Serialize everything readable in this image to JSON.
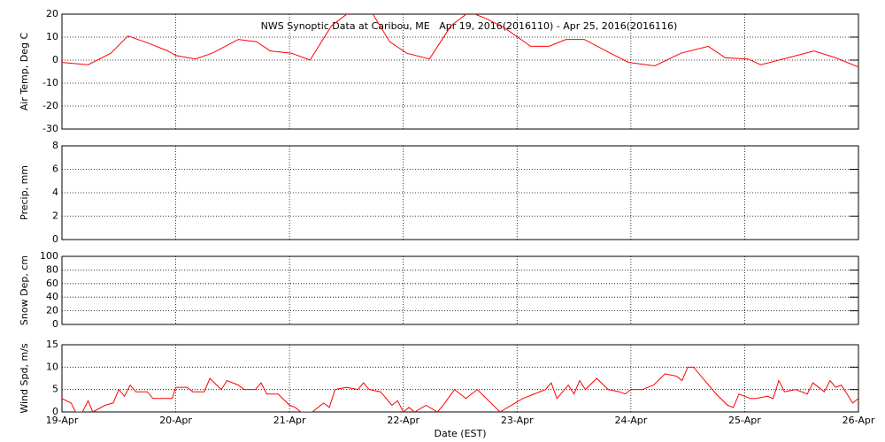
{
  "chart_data": [
    {
      "type": "line",
      "title": "NWS Synoptic Data at Caribou, ME   Apr 19, 2016(2016110) - Apr 25, 2016(2016116)",
      "ylabel": "Air Temp, Deg C",
      "ylim": [
        -30,
        20
      ],
      "yticks": [
        -30,
        -20,
        -10,
        0,
        10,
        20
      ],
      "xlim": [
        0,
        7
      ],
      "xticks": [
        0,
        1,
        2,
        3,
        4,
        5,
        6,
        7
      ],
      "grid": true,
      "x": [
        0,
        0.23,
        0.43,
        0.58,
        0.78,
        0.93,
        1.0,
        1.17,
        1.32,
        1.55,
        1.71,
        1.83,
        2.02,
        2.18,
        2.37,
        2.53,
        2.72,
        2.88,
        3.03,
        3.23,
        3.42,
        3.58,
        3.73,
        3.89,
        4.12,
        4.28,
        4.43,
        4.59,
        4.82,
        4.98,
        5.21,
        5.44,
        5.68,
        5.83,
        6.03,
        6.14,
        6.38,
        6.61,
        6.8,
        7.0
      ],
      "series": [
        {
          "color": "#ff0000",
          "values": [
            -1,
            -2,
            3,
            10.5,
            7,
            4,
            2,
            0.5,
            3,
            9,
            8,
            4,
            3,
            0,
            15,
            21,
            21,
            8,
            3,
            0.5,
            15,
            21,
            18,
            14,
            6,
            6,
            9,
            9,
            3,
            -1,
            -2.5,
            3,
            6,
            1,
            0.5,
            -2,
            1,
            4,
            1,
            -3
          ]
        }
      ]
    },
    {
      "type": "line",
      "ylabel": "Precip, mm",
      "ylim": [
        0,
        8
      ],
      "yticks": [
        0,
        2,
        4,
        6,
        8
      ],
      "xlim": [
        0,
        7
      ],
      "xticks": [
        0,
        1,
        2,
        3,
        4,
        5,
        6,
        7
      ],
      "grid": true
    },
    {
      "type": "line",
      "ylabel": "Snow Dep, cm",
      "ylim": [
        0,
        100
      ],
      "yticks": [
        0,
        20,
        40,
        60,
        80,
        100
      ],
      "xlim": [
        0,
        7
      ],
      "xticks": [
        0,
        1,
        2,
        3,
        4,
        5,
        6,
        7
      ],
      "grid": true
    },
    {
      "type": "line",
      "ylabel": "Wind Spd, m/s",
      "xlabel": "Date (EST)",
      "ylim": [
        0,
        15
      ],
      "yticks": [
        0,
        5,
        10,
        15
      ],
      "xlim": [
        0,
        7
      ],
      "grid": true,
      "xticks": [
        {
          "value": 0,
          "label": "19-Apr"
        },
        {
          "value": 1,
          "label": "20-Apr"
        },
        {
          "value": 2,
          "label": "21-Apr"
        },
        {
          "value": 3,
          "label": "22-Apr"
        },
        {
          "value": 4,
          "label": "23-Apr"
        },
        {
          "value": 5,
          "label": "24-Apr"
        },
        {
          "value": 6,
          "label": "25-Apr"
        },
        {
          "value": 7,
          "label": "26-Apr"
        }
      ],
      "x": [
        0,
        0.08,
        0.12,
        0.18,
        0.23,
        0.27,
        0.38,
        0.45,
        0.5,
        0.55,
        0.6,
        0.65,
        0.75,
        0.8,
        0.9,
        0.97,
        1.0,
        1.1,
        1.15,
        1.25,
        1.3,
        1.4,
        1.45,
        1.55,
        1.6,
        1.7,
        1.75,
        1.8,
        1.9,
        2.0,
        2.05,
        2.1,
        2.2,
        2.3,
        2.35,
        2.4,
        2.5,
        2.6,
        2.65,
        2.7,
        2.8,
        2.9,
        2.95,
        3.0,
        3.05,
        3.1,
        3.2,
        3.3,
        3.35,
        3.45,
        3.55,
        3.65,
        3.75,
        3.85,
        3.95,
        4.05,
        4.15,
        4.25,
        4.3,
        4.35,
        4.45,
        4.5,
        4.55,
        4.6,
        4.7,
        4.8,
        4.9,
        4.95,
        5.0,
        5.1,
        5.2,
        5.3,
        5.4,
        5.45,
        5.5,
        5.55,
        5.65,
        5.75,
        5.85,
        5.9,
        5.95,
        6.05,
        6.1,
        6.2,
        6.25,
        6.3,
        6.35,
        6.45,
        6.55,
        6.6,
        6.7,
        6.75,
        6.8,
        6.85,
        6.9,
        6.95,
        7.0
      ],
      "series": [
        {
          "color": "#ff0000",
          "values": [
            3,
            2,
            0,
            0,
            2.5,
            0,
            1.5,
            2,
            5,
            3.5,
            6,
            4.5,
            4.5,
            3,
            3,
            3,
            5.5,
            5.5,
            4.5,
            4.5,
            7.5,
            5,
            7,
            6,
            5,
            5,
            6.5,
            4,
            4,
            1.5,
            1,
            0,
            0,
            2,
            1,
            5,
            5.5,
            5,
            6.5,
            5,
            4.5,
            1.5,
            2.5,
            0,
            1,
            0,
            1.5,
            0,
            1.5,
            5,
            3,
            5,
            2.5,
            0,
            1.5,
            3,
            4,
            5,
            6.5,
            3,
            6,
            4,
            7,
            5,
            7.5,
            5,
            4.5,
            4,
            5,
            5,
            6,
            8.5,
            8,
            7,
            10,
            10,
            7,
            4,
            1.5,
            1,
            4,
            3,
            3,
            3.5,
            3,
            7,
            4.5,
            5,
            4,
            6.5,
            4.5,
            7,
            5.5,
            6,
            4,
            2,
            3
          ]
        }
      ]
    }
  ]
}
